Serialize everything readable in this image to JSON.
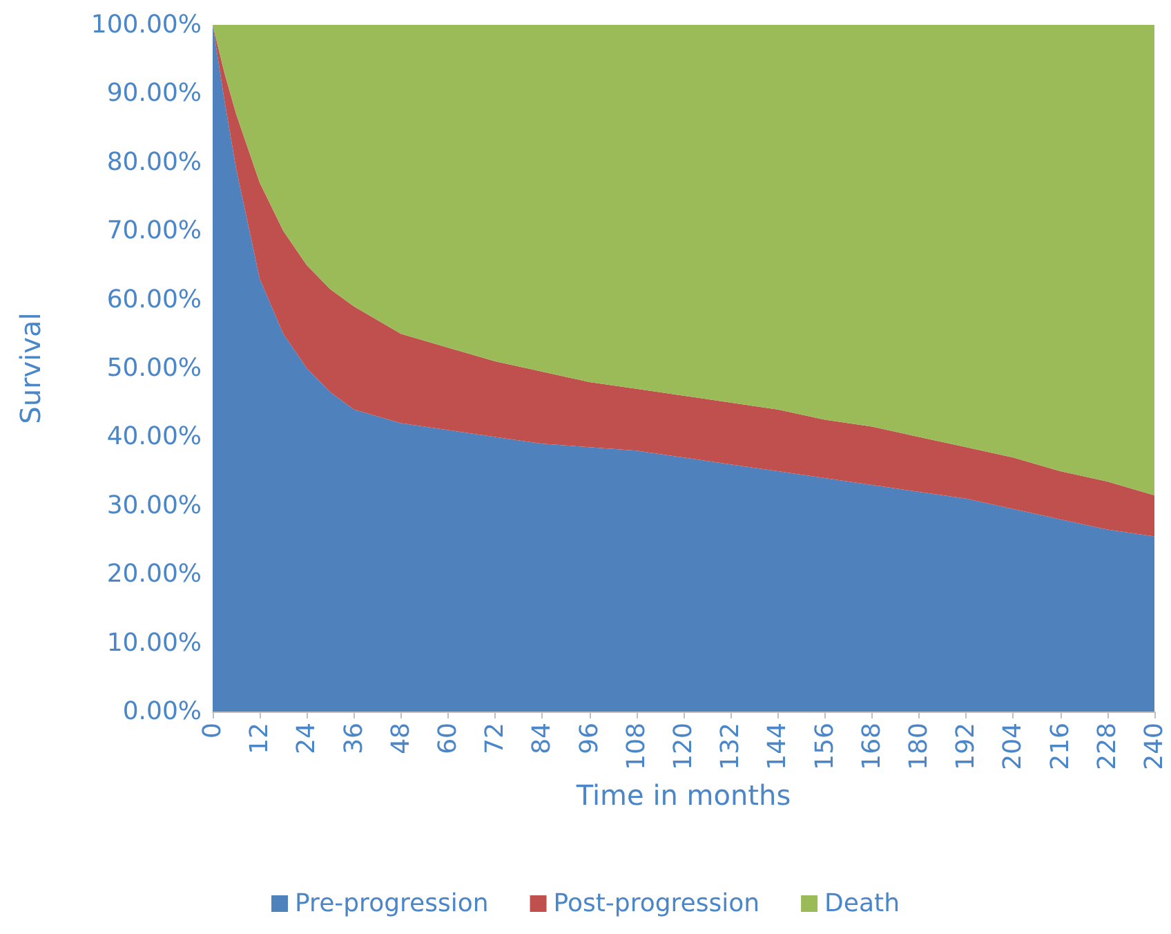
{
  "chart_data": {
    "type": "area",
    "stacked": true,
    "xlabel": "Time in months",
    "ylabel": "Survival",
    "x": [
      0,
      3,
      6,
      12,
      18,
      24,
      30,
      36,
      48,
      60,
      72,
      84,
      96,
      108,
      120,
      132,
      144,
      156,
      168,
      180,
      192,
      204,
      216,
      228,
      240
    ],
    "series": [
      {
        "name": "Pre-progression",
        "color": "#4f81bd",
        "values": [
          100,
          89,
          79,
          63,
          55,
          50,
          46.5,
          44,
          42,
          41,
          40,
          39,
          38.5,
          38,
          37,
          36,
          35,
          34,
          33,
          32,
          31,
          29.5,
          28,
          26.5,
          25.5
        ]
      },
      {
        "name": "Post-progression",
        "color": "#c0504d",
        "values": [
          0,
          4,
          8,
          14,
          15,
          15,
          15,
          15,
          13,
          12,
          11,
          10.5,
          9.5,
          9,
          9,
          9,
          9,
          8.5,
          8.5,
          8,
          7.5,
          7.5,
          7,
          7,
          6
        ]
      },
      {
        "name": "Death",
        "color": "#9bbb59",
        "values": [
          0,
          7,
          13,
          23,
          30,
          35,
          38.5,
          41,
          45,
          47,
          49,
          50.5,
          52,
          53,
          54,
          55,
          56,
          57.5,
          58.5,
          60,
          61.5,
          63,
          65,
          66.5,
          68.5
        ]
      }
    ],
    "xlim": [
      0,
      240
    ],
    "xticks": [
      0,
      12,
      24,
      36,
      48,
      60,
      72,
      84,
      96,
      108,
      120,
      132,
      144,
      156,
      168,
      180,
      192,
      204,
      216,
      228,
      240
    ],
    "ylim": [
      0,
      100
    ],
    "yticks": [
      {
        "value": 0,
        "label": "0.00%"
      },
      {
        "value": 10,
        "label": "10.00%"
      },
      {
        "value": 20,
        "label": "20.00%"
      },
      {
        "value": 30,
        "label": "30.00%"
      },
      {
        "value": 40,
        "label": "40.00%"
      },
      {
        "value": 50,
        "label": "50.00%"
      },
      {
        "value": 60,
        "label": "60.00%"
      },
      {
        "value": 70,
        "label": "70.00%"
      },
      {
        "value": 80,
        "label": "80.00%"
      },
      {
        "value": 90,
        "label": "90.00%"
      },
      {
        "value": 100,
        "label": "100.00%"
      }
    ],
    "grid": false,
    "legend": "bottom"
  }
}
